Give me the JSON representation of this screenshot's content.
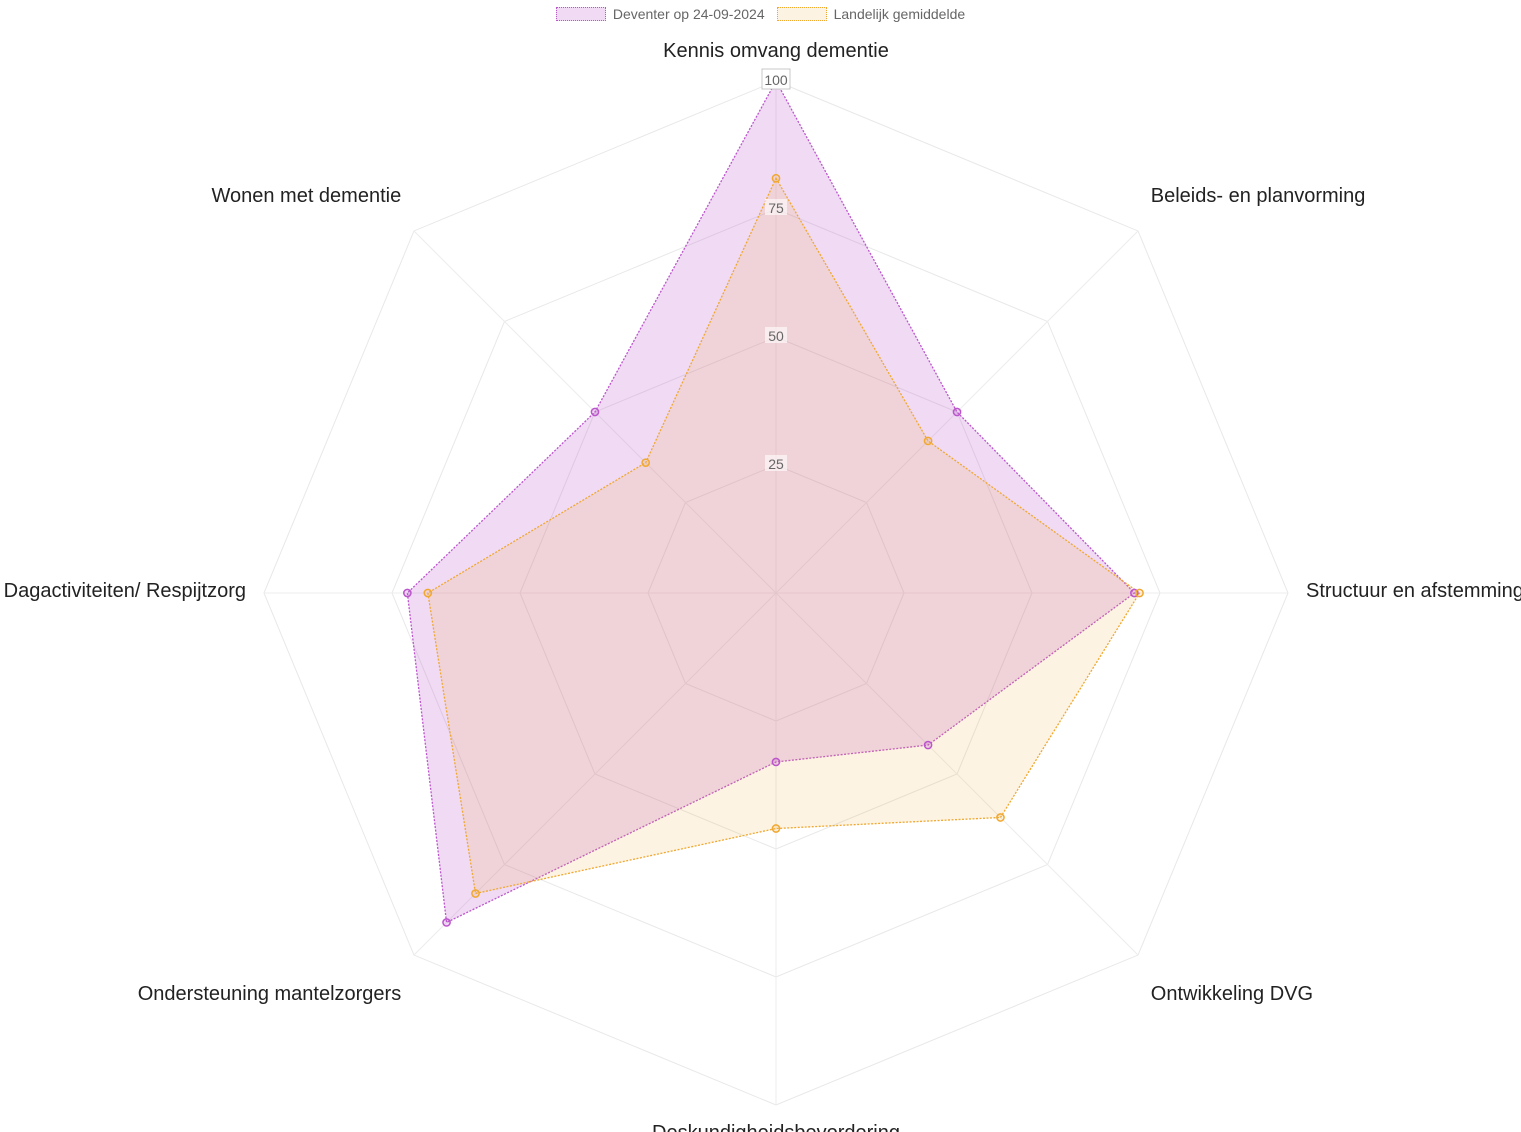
{
  "chart_data": {
    "type": "radar",
    "categories": [
      "Kennis omvang dementie",
      "Beleids- en planvorming",
      "Structuur en afstemming",
      "Ontwikkeling DVG",
      "Deskundigheidsbevordering",
      "Ondersteuning mantelzorgers",
      "Dagactiviteiten/ Respijtzorg",
      "Wonen met dementie"
    ],
    "series": [
      {
        "name": "Deventer op 24-09-2024",
        "values": [
          100,
          50,
          70,
          42,
          33,
          91,
          72,
          50
        ],
        "color": "#bb55cc",
        "fill": "rgba(187,85,204,0.22)"
      },
      {
        "name": "Landelijk gemiddelde",
        "values": [
          81,
          42,
          71,
          62,
          46,
          83,
          68,
          36
        ],
        "color": "#f0a830",
        "fill": "rgba(240,168,48,0.14)"
      }
    ],
    "rlim": [
      0,
      100
    ],
    "ticks": [
      "25",
      "50",
      "75",
      "100"
    ],
    "tick_values": [
      25,
      50,
      75,
      100
    ],
    "legend_position": "top",
    "grid": true
  }
}
